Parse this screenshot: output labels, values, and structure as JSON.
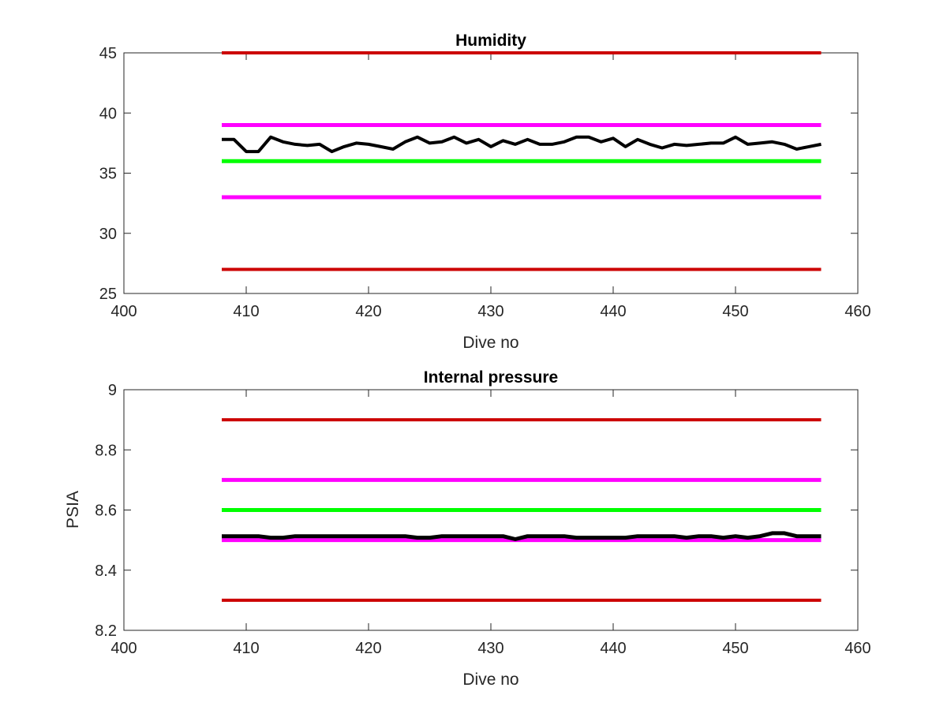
{
  "chart_data": [
    {
      "type": "line",
      "title": "Humidity",
      "xlabel": "Dive no",
      "ylabel": "",
      "xlim": [
        400,
        460
      ],
      "ylim": [
        25,
        45
      ],
      "xticks": [
        400,
        410,
        420,
        430,
        440,
        450,
        460
      ],
      "yticks": [
        25,
        30,
        35,
        40,
        45
      ],
      "grid": false,
      "legend": "none",
      "series": [
        {
          "color": "#cc0000",
          "linewidth": 4,
          "x": [
            408,
            457
          ],
          "y": [
            45,
            45
          ]
        },
        {
          "color": "#ff00ff",
          "linewidth": 5,
          "x": [
            408,
            457
          ],
          "y": [
            39,
            39
          ]
        },
        {
          "color": "#00ff00",
          "linewidth": 5,
          "x": [
            408,
            457
          ],
          "y": [
            36,
            36
          ]
        },
        {
          "color": "#ff00ff",
          "linewidth": 5,
          "x": [
            408,
            457
          ],
          "y": [
            33,
            33
          ]
        },
        {
          "color": "#cc0000",
          "linewidth": 4,
          "x": [
            408,
            457
          ],
          "y": [
            27,
            27
          ]
        },
        {
          "color": "#000000",
          "linewidth": 4,
          "x": [
            408,
            409,
            410,
            411,
            412,
            413,
            414,
            415,
            416,
            417,
            418,
            419,
            420,
            421,
            422,
            423,
            424,
            425,
            426,
            427,
            428,
            429,
            430,
            431,
            432,
            433,
            434,
            435,
            436,
            437,
            438,
            439,
            440,
            441,
            442,
            443,
            444,
            445,
            446,
            447,
            448,
            449,
            450,
            451,
            452,
            453,
            454,
            455,
            456,
            457
          ],
          "y": [
            37.8,
            37.8,
            36.8,
            36.8,
            38.0,
            37.6,
            37.4,
            37.3,
            37.4,
            36.8,
            37.2,
            37.5,
            37.4,
            37.2,
            37.0,
            37.6,
            38.0,
            37.5,
            37.6,
            38.0,
            37.5,
            37.8,
            37.2,
            37.7,
            37.4,
            37.8,
            37.4,
            37.4,
            37.6,
            38.0,
            38.0,
            37.6,
            37.9,
            37.2,
            37.8,
            37.4,
            37.1,
            37.4,
            37.3,
            37.4,
            37.5,
            37.5,
            38.0,
            37.4,
            37.5,
            37.6,
            37.4,
            37.0,
            37.2,
            37.4
          ]
        }
      ]
    },
    {
      "type": "line",
      "title": "Internal pressure",
      "xlabel": "Dive no",
      "ylabel": "PSIA",
      "xlim": [
        400,
        460
      ],
      "ylim": [
        8.2,
        9
      ],
      "xticks": [
        400,
        410,
        420,
        430,
        440,
        450,
        460
      ],
      "yticks": [
        8.2,
        8.4,
        8.6,
        8.8,
        9
      ],
      "grid": false,
      "legend": "none",
      "series": [
        {
          "color": "#cc0000",
          "linewidth": 4,
          "x": [
            408,
            457
          ],
          "y": [
            8.9,
            8.9
          ]
        },
        {
          "color": "#ff00ff",
          "linewidth": 5,
          "x": [
            408,
            457
          ],
          "y": [
            8.7,
            8.7
          ]
        },
        {
          "color": "#00ff00",
          "linewidth": 5,
          "x": [
            408,
            457
          ],
          "y": [
            8.6,
            8.6
          ]
        },
        {
          "color": "#ff00ff",
          "linewidth": 5,
          "x": [
            408,
            457
          ],
          "y": [
            8.5,
            8.5
          ]
        },
        {
          "color": "#cc0000",
          "linewidth": 4,
          "x": [
            408,
            457
          ],
          "y": [
            8.3,
            8.3
          ]
        },
        {
          "color": "#000000",
          "linewidth": 5,
          "x": [
            408,
            409,
            410,
            411,
            412,
            413,
            414,
            415,
            416,
            417,
            418,
            419,
            420,
            421,
            422,
            423,
            424,
            425,
            426,
            427,
            428,
            429,
            430,
            431,
            432,
            433,
            434,
            435,
            436,
            437,
            438,
            439,
            440,
            441,
            442,
            443,
            444,
            445,
            446,
            447,
            448,
            449,
            450,
            451,
            452,
            453,
            454,
            455,
            456,
            457
          ],
          "y": [
            8.513,
            8.513,
            8.513,
            8.513,
            8.508,
            8.508,
            8.513,
            8.513,
            8.513,
            8.513,
            8.513,
            8.513,
            8.513,
            8.513,
            8.513,
            8.513,
            8.508,
            8.508,
            8.513,
            8.513,
            8.513,
            8.513,
            8.513,
            8.513,
            8.503,
            8.513,
            8.513,
            8.513,
            8.513,
            8.508,
            8.508,
            8.508,
            8.508,
            8.508,
            8.513,
            8.513,
            8.513,
            8.513,
            8.508,
            8.513,
            8.513,
            8.508,
            8.513,
            8.508,
            8.513,
            8.523,
            8.523,
            8.513,
            8.513,
            8.513
          ]
        }
      ]
    }
  ]
}
